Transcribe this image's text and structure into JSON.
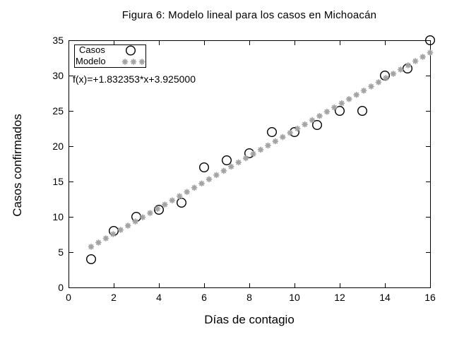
{
  "title": "Figura 6: Modelo lineal para los casos en Michoacán",
  "chart_data": {
    "type": "scatter",
    "title": "Figura 6: Modelo lineal para los casos en Michoacán",
    "xlabel": "Días de contagio",
    "ylabel": "Casos confirmados",
    "xlim": [
      0,
      16
    ],
    "ylim": [
      0,
      35
    ],
    "xticks": [
      0,
      2,
      4,
      6,
      8,
      10,
      12,
      14,
      16
    ],
    "yticks": [
      0,
      5,
      10,
      15,
      20,
      25,
      30,
      35
    ],
    "grid": false,
    "annotation": "f(x)=+1.832353*x+3.925000",
    "legend": {
      "position": "top-left",
      "border": true
    },
    "colors": {
      "casos": "#000000",
      "modelo": "#a3a3a3",
      "axis": "#000000",
      "background": "#ffffff"
    },
    "series": [
      {
        "name": "Casos",
        "style": "points",
        "marker": "open-circle",
        "color": "#000000",
        "x": [
          1,
          2,
          3,
          4,
          5,
          6,
          7,
          8,
          9,
          10,
          11,
          12,
          13,
          14,
          15,
          16
        ],
        "y": [
          4,
          8,
          10,
          11,
          12,
          17,
          18,
          19,
          22,
          22,
          23,
          25,
          25,
          30,
          31,
          35
        ]
      },
      {
        "name": "Modelo",
        "style": "function-points",
        "marker": "asterisk",
        "color": "#a3a3a3",
        "slope": 1.832353,
        "intercept": 3.925,
        "x_start": 1,
        "x_end": 16,
        "n_points": 47
      }
    ]
  }
}
